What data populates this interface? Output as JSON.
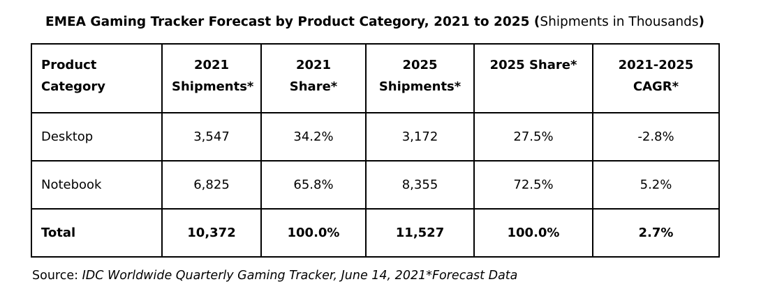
{
  "title": {
    "bold_part": "EMEA Gaming Tracker Forecast by Product Category, 2021 to 2025 (",
    "normal_part": "Shipments in Thousands",
    "close_paren": ")"
  },
  "table": {
    "headers": [
      [
        "Product",
        "Category"
      ],
      [
        "2021",
        "Shipments*"
      ],
      [
        "2021 Share*",
        ""
      ],
      [
        "2025",
        "Shipments*"
      ],
      [
        "2025 Share*",
        ""
      ],
      [
        "2021-2025",
        "CAGR*"
      ]
    ],
    "rows": [
      [
        "Desktop",
        "3,547",
        "34.2%",
        "3,172",
        "27.5%",
        "-2.8%"
      ],
      [
        "Notebook",
        "6,825",
        "65.8%",
        "8,355",
        "72.5%",
        "5.2%"
      ]
    ],
    "total": [
      "Total",
      "10,372",
      "100.0%",
      "11,527",
      "100.0%",
      "2.7%"
    ]
  },
  "source": {
    "label": "Source: ",
    "text": "IDC Worldwide Quarterly Gaming Tracker, June 14, 2021*Forecast Data"
  }
}
